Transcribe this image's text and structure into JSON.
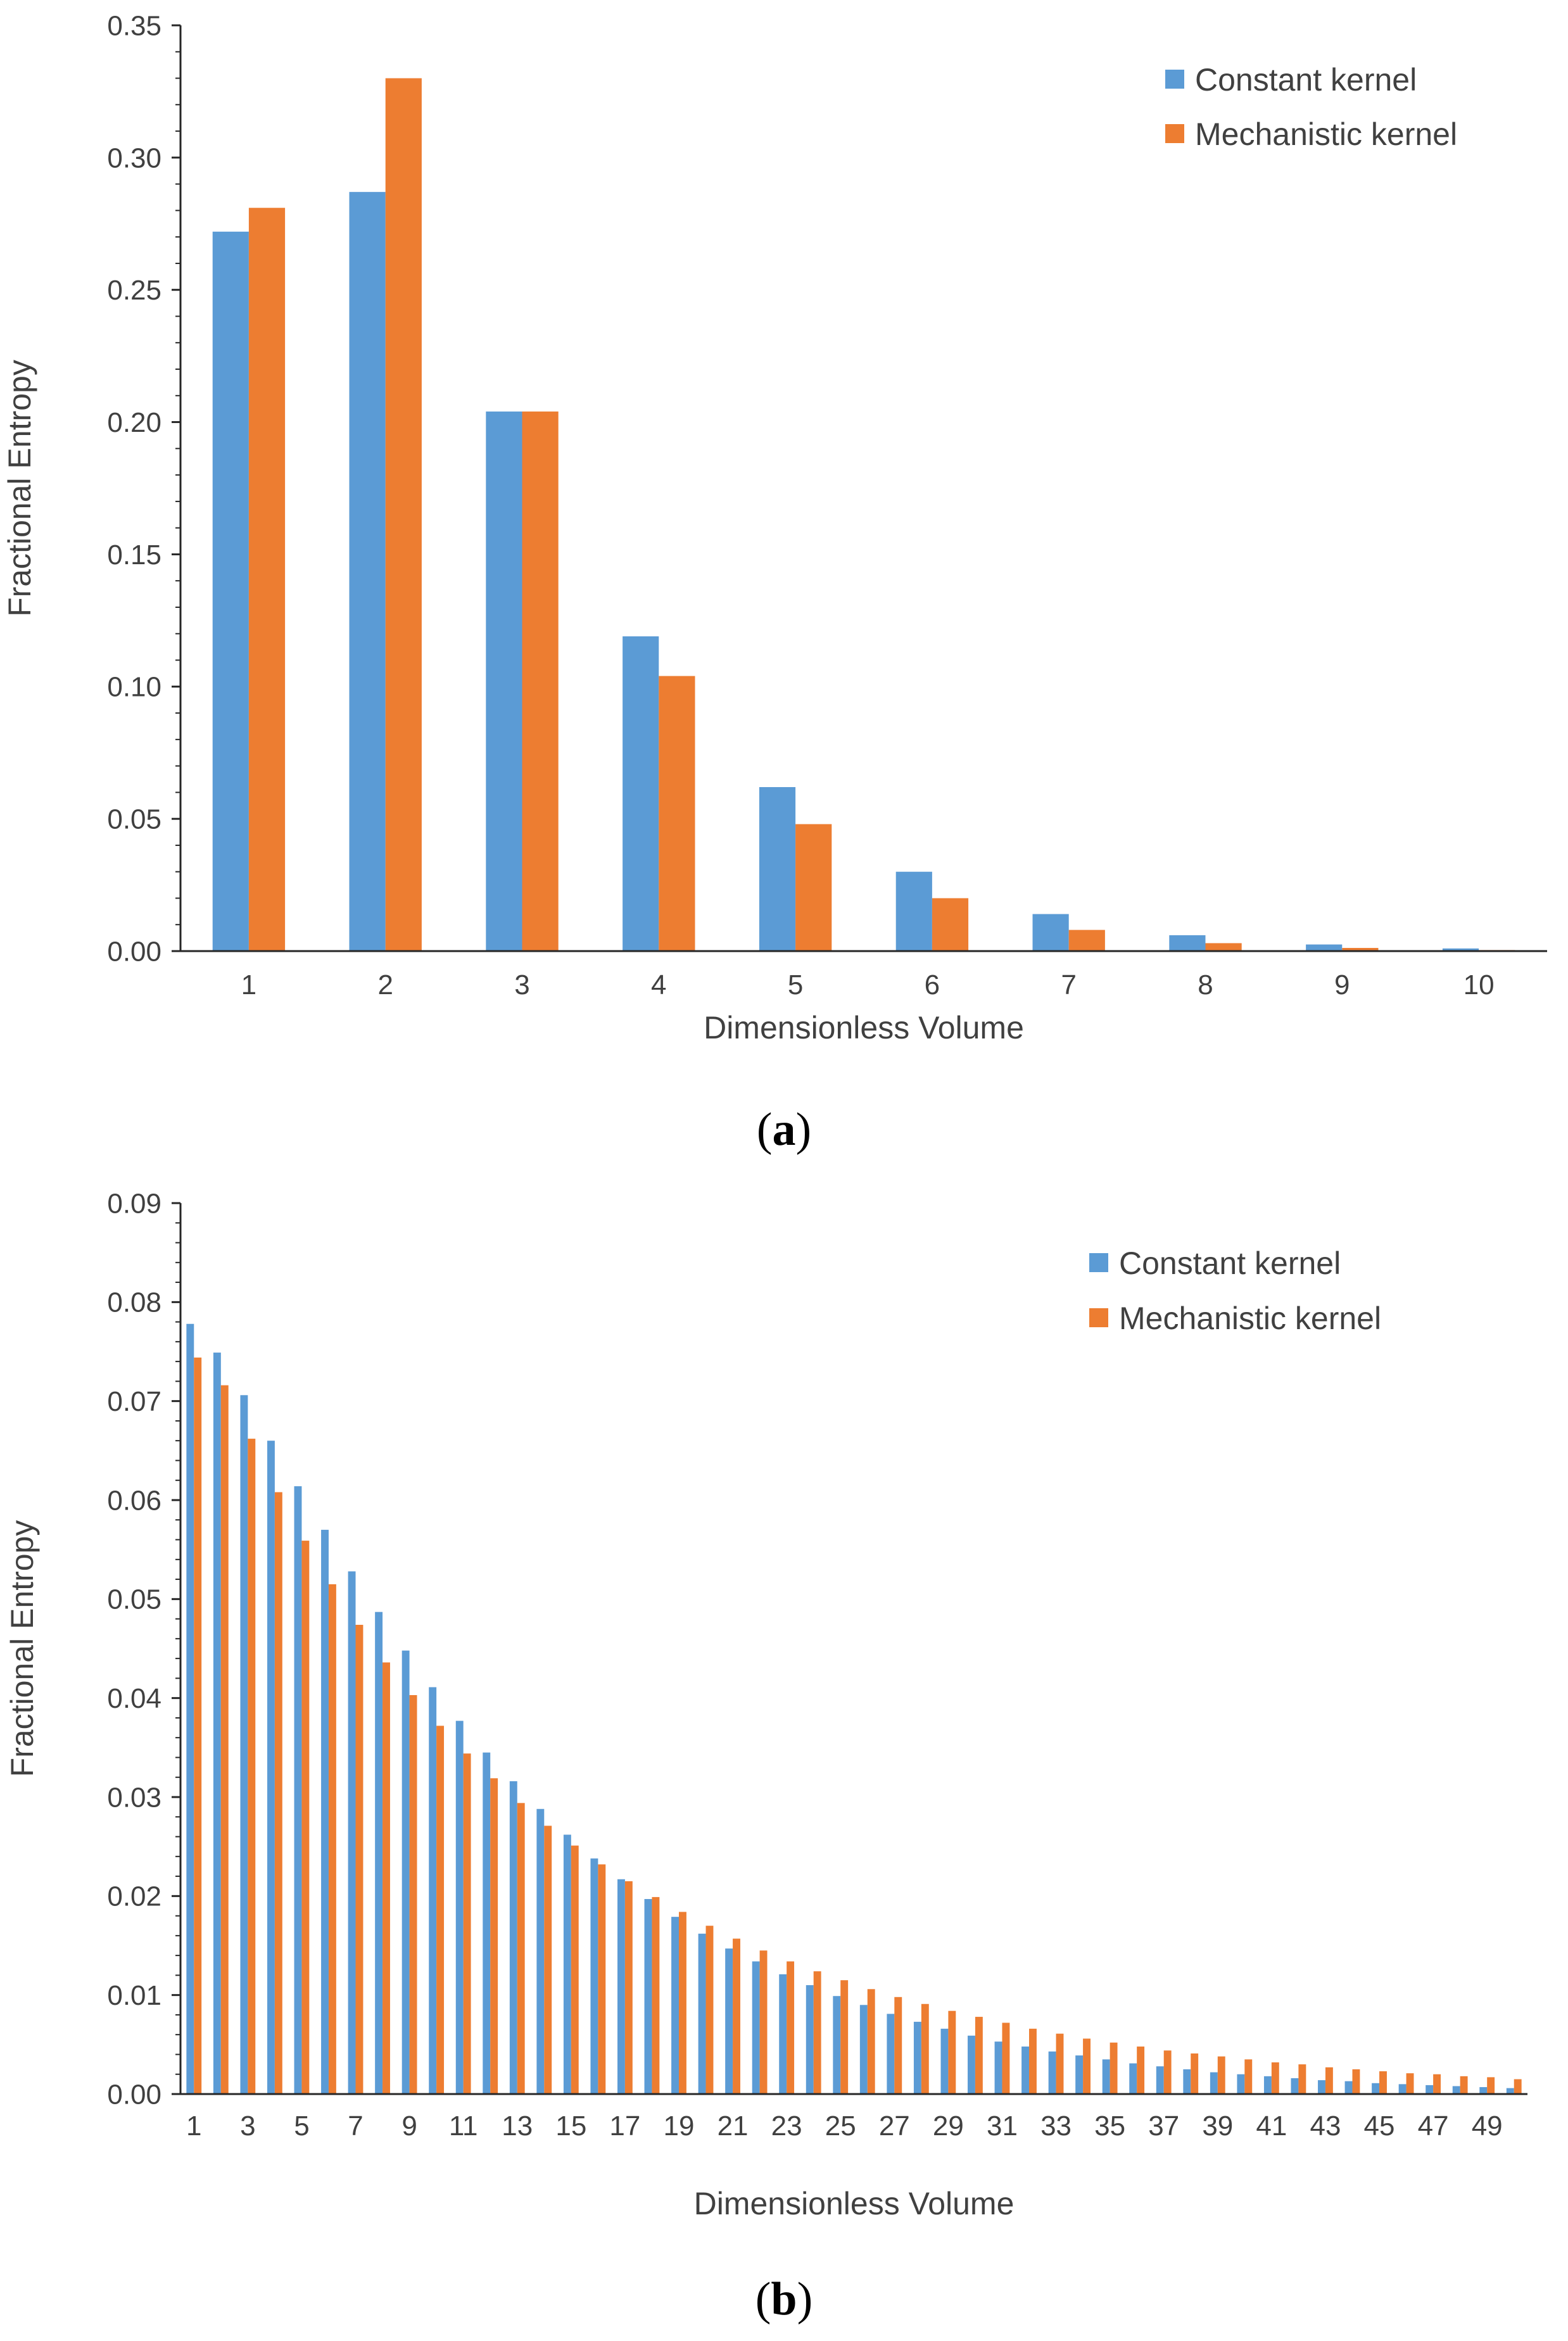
{
  "colors": {
    "constant": "#5B9BD5",
    "mechanistic": "#ED7D31",
    "axis": "#262626",
    "text": "#404040"
  },
  "chart_data": [
    {
      "type": "bar",
      "panel_label": "a",
      "xlabel": "Dimensionless Volume",
      "ylabel": "Fractional Entropy",
      "ylim": [
        0,
        0.35
      ],
      "yticks": [
        "0.00",
        "0.05",
        "0.10",
        "0.15",
        "0.20",
        "0.25",
        "0.30",
        "0.35"
      ],
      "categories": [
        "1",
        "2",
        "3",
        "4",
        "5",
        "6",
        "7",
        "8",
        "9",
        "10"
      ],
      "legend": "top-right",
      "grid": false,
      "series": [
        {
          "name": "Constant kernel",
          "values": [
            0.272,
            0.287,
            0.204,
            0.119,
            0.062,
            0.03,
            0.014,
            0.006,
            0.0025,
            0.001
          ]
        },
        {
          "name": "Mechanistic kernel",
          "values": [
            0.281,
            0.33,
            0.204,
            0.104,
            0.048,
            0.02,
            0.008,
            0.003,
            0.0012,
            0.0004
          ]
        }
      ]
    },
    {
      "type": "bar",
      "panel_label": "b",
      "xlabel": "Dimensionless Volume",
      "ylabel": "Fractional Entropy",
      "ylim": [
        0,
        0.09
      ],
      "yticks": [
        "0.00",
        "0.01",
        "0.02",
        "0.03",
        "0.04",
        "0.05",
        "0.06",
        "0.07",
        "0.08",
        "0.09"
      ],
      "categories": [
        "1",
        "2",
        "3",
        "4",
        "5",
        "6",
        "7",
        "8",
        "9",
        "10",
        "11",
        "12",
        "13",
        "14",
        "15",
        "16",
        "17",
        "18",
        "19",
        "20",
        "21",
        "22",
        "23",
        "24",
        "25",
        "26",
        "27",
        "28",
        "29",
        "30",
        "31",
        "32",
        "33",
        "34",
        "35",
        "36",
        "37",
        "38",
        "39",
        "40",
        "41",
        "42",
        "43",
        "44",
        "45",
        "46",
        "47",
        "48",
        "49",
        "50"
      ],
      "tick_labels_shown": [
        "1",
        "3",
        "5",
        "7",
        "9",
        "11",
        "13",
        "15",
        "17",
        "19",
        "21",
        "23",
        "25",
        "27",
        "29",
        "31",
        "33",
        "35",
        "37",
        "39",
        "41",
        "43",
        "45",
        "47",
        "49"
      ],
      "legend": "top-right",
      "grid": false,
      "series": [
        {
          "name": "Constant kernel",
          "values": [
            0.0778,
            0.0749,
            0.0706,
            0.066,
            0.0614,
            0.057,
            0.0528,
            0.0487,
            0.0448,
            0.0411,
            0.0377,
            0.0345,
            0.0316,
            0.0288,
            0.0262,
            0.0238,
            0.0217,
            0.0197,
            0.0179,
            0.0162,
            0.0147,
            0.0134,
            0.0121,
            0.011,
            0.0099,
            0.009,
            0.0081,
            0.0073,
            0.0066,
            0.0059,
            0.0053,
            0.0048,
            0.0043,
            0.0039,
            0.0035,
            0.0031,
            0.0028,
            0.0025,
            0.0022,
            0.002,
            0.0018,
            0.0016,
            0.0014,
            0.0013,
            0.0011,
            0.001,
            0.0009,
            0.0008,
            0.0007,
            0.0006
          ]
        },
        {
          "name": "Mechanistic kernel",
          "values": [
            0.0744,
            0.0716,
            0.0662,
            0.0608,
            0.0559,
            0.0515,
            0.0474,
            0.0436,
            0.0403,
            0.0372,
            0.0344,
            0.0319,
            0.0294,
            0.0271,
            0.0251,
            0.0232,
            0.0215,
            0.0199,
            0.0184,
            0.017,
            0.0157,
            0.0145,
            0.0134,
            0.0124,
            0.0115,
            0.0106,
            0.0098,
            0.0091,
            0.0084,
            0.0078,
            0.0072,
            0.0066,
            0.0061,
            0.0056,
            0.0052,
            0.0048,
            0.0044,
            0.0041,
            0.0038,
            0.0035,
            0.0032,
            0.003,
            0.0027,
            0.0025,
            0.0023,
            0.0021,
            0.002,
            0.0018,
            0.0017,
            0.0015
          ]
        }
      ]
    }
  ]
}
